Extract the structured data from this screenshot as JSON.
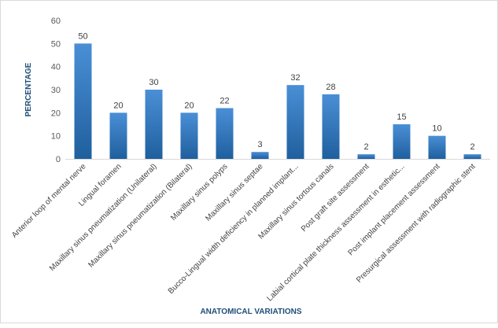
{
  "chart_data": {
    "type": "bar",
    "title": "",
    "xlabel": "ANATOMICAL VARIATIONS",
    "ylabel": "PERCENTAGE",
    "ylim": [
      0,
      60
    ],
    "yticks": [
      0,
      10,
      20,
      30,
      40,
      50,
      60
    ],
    "grid": false,
    "legend": "none",
    "bar_color": "#2e75b6",
    "categories": [
      "Anterior loop of mental nerve",
      "Lingual foramen",
      "Maxillary sinus pneumatization (Unilateral)",
      "Maxillary sinus pneumatization (Bilateral)",
      "Maxillary sinus polyps",
      "Maxillary sinus septae",
      "Bucco-Lingual width deficiency in planned implant...",
      "Maxillary sinus tortous canals",
      "Post graft site assessment",
      "Labial cortical plate thickness assessment in esthetic...",
      "Post implant placement assessment",
      "Presurgical assessment with radiographic stent"
    ],
    "values": [
      50,
      20,
      30,
      20,
      22,
      3,
      32,
      28,
      2,
      15,
      10,
      2
    ]
  }
}
